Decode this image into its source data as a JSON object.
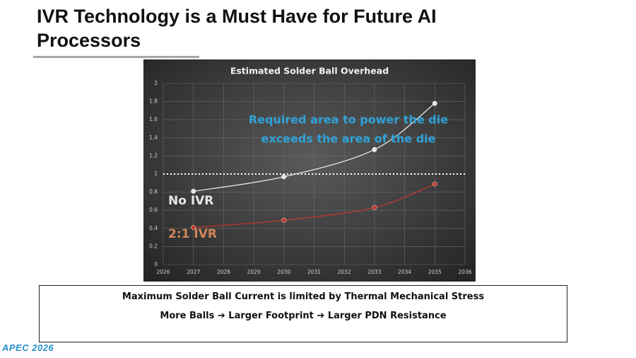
{
  "slide": {
    "title_lines": [
      "IVR Technology is a Must Have for Future AI",
      "Processors"
    ],
    "box_lines": [
      "Maximum Solder Ball Current is limited by Thermal Mechanical Stress",
      "More Balls ➔ Larger Footprint ➔ Larger PDN Resistance"
    ],
    "logo": "APEC 2026"
  },
  "chart_data": {
    "type": "line",
    "title": "Estimated Solder Ball Overhead",
    "annotation_lines": [
      "Required area to power the die",
      "exceeds the area of the die"
    ],
    "annotation_color": "#2fa3d8",
    "x": [
      2027,
      2030,
      2033,
      2035
    ],
    "series": [
      {
        "name": "No IVR",
        "color": "#e6e6e6",
        "label_color": "#e6e6e6",
        "values": [
          0.81,
          0.97,
          1.27,
          1.78
        ]
      },
      {
        "name": "2:1 IVR",
        "color": "#c0392b",
        "label_color": "#d0865a",
        "values": [
          0.41,
          0.49,
          0.63,
          0.89
        ]
      }
    ],
    "xlim": [
      2026,
      2036
    ],
    "xticks": [
      2026,
      2027,
      2028,
      2029,
      2030,
      2031,
      2032,
      2033,
      2034,
      2035,
      2036
    ],
    "ylim": [
      0,
      2
    ],
    "yticks": [
      0,
      0.2,
      0.4,
      0.6,
      0.8,
      1,
      1.2,
      1.4,
      1.6,
      1.8,
      2
    ],
    "reference_line": 1,
    "grid": true,
    "smooth": true
  }
}
